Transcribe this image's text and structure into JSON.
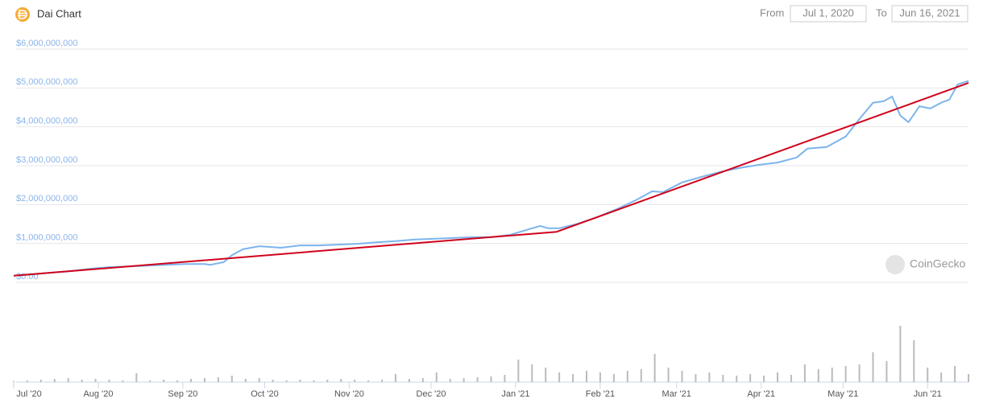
{
  "header": {
    "from_label": "From",
    "from": "Jul 1, 2020",
    "to_label": "To",
    "to": "Jun 16, 2021",
    "watermark": "CoinGecko"
  },
  "chart_data": {
    "type": "line",
    "title": "Dai Chart",
    "x": [
      0,
      7,
      14,
      21,
      28,
      35,
      42,
      49,
      56,
      63,
      70,
      72,
      77,
      80,
      84,
      90,
      98,
      105,
      112,
      119,
      126,
      133,
      140,
      147,
      154,
      161,
      168,
      175,
      182,
      189,
      193,
      196,
      200,
      207,
      214,
      221,
      228,
      234,
      238,
      245,
      252,
      259,
      266,
      273,
      280,
      287,
      291,
      298,
      305,
      310,
      315,
      319,
      322,
      325,
      328,
      332,
      336,
      340,
      343,
      346,
      350
    ],
    "series": [
      {
        "color": "#7cb5ec",
        "values": [
          170000000,
          200000000,
          250000000,
          290000000,
          350000000,
          390000000,
          410000000,
          430000000,
          450000000,
          470000000,
          470000000,
          450000000,
          520000000,
          700000000,
          850000000,
          930000000,
          890000000,
          950000000,
          950000000,
          970000000,
          990000000,
          1030000000,
          1060000000,
          1100000000,
          1120000000,
          1140000000,
          1160000000,
          1160000000,
          1220000000,
          1370000000,
          1450000000,
          1390000000,
          1390000000,
          1510000000,
          1680000000,
          1880000000,
          2110000000,
          2340000000,
          2320000000,
          2570000000,
          2710000000,
          2840000000,
          2940000000,
          3020000000,
          3080000000,
          3210000000,
          3440000000,
          3480000000,
          3750000000,
          4200000000,
          4620000000,
          4660000000,
          4780000000,
          4290000000,
          4120000000,
          4530000000,
          4470000000,
          4620000000,
          4700000000,
          5090000000,
          5180000000
        ]
      }
    ],
    "trend": {
      "color": "#d0021b",
      "x": [
        0,
        199,
        350
      ],
      "values": [
        170000000,
        1300000000,
        5130000000
      ]
    },
    "volume": {
      "color": "#bbbbbb",
      "x": [
        0,
        5,
        10,
        15,
        20,
        25,
        30,
        35,
        40,
        45,
        50,
        55,
        60,
        65,
        70,
        75,
        80,
        85,
        90,
        95,
        100,
        105,
        110,
        115,
        120,
        125,
        130,
        135,
        140,
        145,
        150,
        155,
        160,
        165,
        170,
        175,
        180,
        185,
        190,
        195,
        200,
        205,
        210,
        215,
        220,
        225,
        230,
        235,
        240,
        245,
        250,
        255,
        260,
        265,
        270,
        275,
        280,
        285,
        290,
        295,
        300,
        305,
        310,
        315,
        320,
        325,
        330,
        335,
        340,
        345,
        350
      ],
      "values": [
        1,
        2,
        3,
        4,
        5,
        3,
        4,
        3,
        2,
        11,
        2,
        3,
        2,
        4,
        5,
        6,
        8,
        4,
        5,
        3,
        2,
        3,
        2,
        3,
        4,
        3,
        2,
        3,
        10,
        4,
        5,
        12,
        4,
        5,
        6,
        7,
        9,
        28,
        22,
        18,
        12,
        10,
        14,
        12,
        10,
        14,
        16,
        35,
        18,
        14,
        10,
        12,
        9,
        8,
        10,
        8,
        12,
        9,
        22,
        16,
        18,
        20,
        22,
        37,
        26,
        70,
        52,
        18,
        12,
        20,
        10
      ]
    },
    "xlim": [
      0,
      350
    ],
    "xticks": [
      {
        "value": 0,
        "label": "Jul '20"
      },
      {
        "value": 31,
        "label": "Aug '20"
      },
      {
        "value": 62,
        "label": "Sep '20"
      },
      {
        "value": 92,
        "label": "Oct '20"
      },
      {
        "value": 123,
        "label": "Nov '20"
      },
      {
        "value": 153,
        "label": "Dec '20"
      },
      {
        "value": 184,
        "label": "Jan '21"
      },
      {
        "value": 215,
        "label": "Feb '21"
      },
      {
        "value": 243,
        "label": "Mar '21"
      },
      {
        "value": 274,
        "label": "Apr '21"
      },
      {
        "value": 304,
        "label": "May '21"
      },
      {
        "value": 335,
        "label": "Jun '21"
      }
    ],
    "ylim": [
      0,
      6000000000
    ],
    "yticks": [
      {
        "value": 0,
        "label": "$0.00"
      },
      {
        "value": 1000000000,
        "label": "$1,000,000,000"
      },
      {
        "value": 2000000000,
        "label": "$2,000,000,000"
      },
      {
        "value": 3000000000,
        "label": "$3,000,000,000"
      },
      {
        "value": 4000000000,
        "label": "$4,000,000,000"
      },
      {
        "value": 5000000000,
        "label": "$5,000,000,000"
      },
      {
        "value": 6000000000,
        "label": "$6,000,000,000"
      }
    ],
    "grid": true
  }
}
